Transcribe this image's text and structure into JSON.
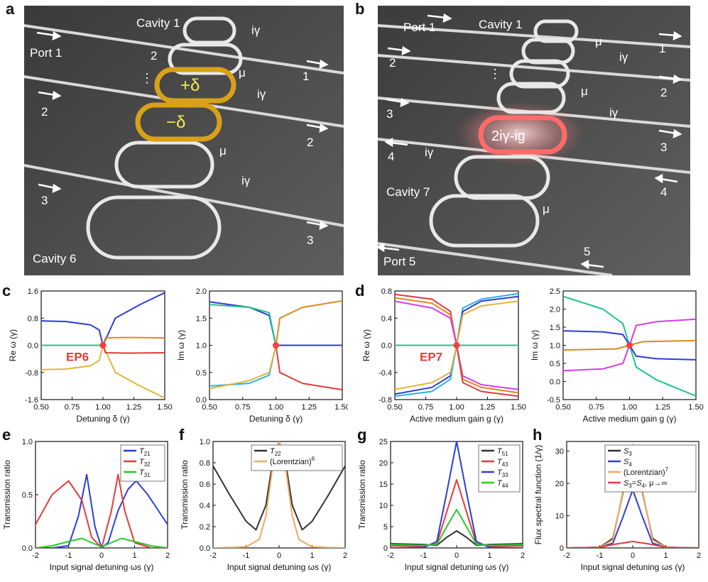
{
  "panel_labels": [
    "a",
    "b",
    "c",
    "d",
    "e",
    "f",
    "g",
    "h"
  ],
  "panel_a": {
    "cavity_top": "Cavity 1",
    "cavity_bottom": "Cavity 6",
    "ports_in": [
      "Port 1",
      "2",
      "3"
    ],
    "ports_out": [
      "1",
      "2",
      "3"
    ],
    "ring_labels": [
      "2",
      "⋮"
    ],
    "coupling": [
      "iγ",
      "μ",
      "iγ",
      "μ",
      "iγ"
    ],
    "detune_plus": "+δ",
    "detune_minus": "−δ"
  },
  "panel_b": {
    "cavity_top": "Cavity 1",
    "cavity_bottom": "Cavity 7",
    "ports_in": [
      "Port 1",
      "2",
      "3",
      "4"
    ],
    "ports_out": [
      "1",
      "2",
      "3",
      "4"
    ],
    "bottom_port": "Port 5",
    "bottom_port_out": "5",
    "coupling": [
      "μ",
      "iγ",
      "μ",
      "iγ",
      "iγ",
      "μ"
    ],
    "gain_label": "2iγ-ig",
    "dots": "⋮"
  },
  "colors": {
    "blue": "#2b3fd6",
    "orange": "#e2861f",
    "green": "#1fc48c",
    "yellow": "#e3b43a",
    "red": "#e23b3b",
    "cyan": "#29b0e8",
    "magenta": "#d63ce6",
    "black": "#333333",
    "bright_green": "#2ac92a",
    "light_orange": "#f3a95c"
  },
  "chart_data": [
    {
      "id": "c-left",
      "type": "line",
      "xlabel": "Detuning δ (γ)",
      "ylabel": "Re ω (γ)",
      "xlim": [
        0.5,
        1.5
      ],
      "ylim": [
        -1.6,
        1.6
      ],
      "xticks": [
        "0.50",
        "0.75",
        "1.00",
        "1.25",
        "1.50"
      ],
      "yticks": [
        "-1.6",
        "-0.8",
        "0.0",
        "0.8",
        "1.6"
      ],
      "annotation": "EP6",
      "ep_point": [
        1.0,
        0.0
      ],
      "series": [
        {
          "color": "blue",
          "x": [
            0.5,
            0.7,
            0.9,
            0.97,
            1.0,
            1.1,
            1.3,
            1.5
          ],
          "y": [
            0.72,
            0.7,
            0.6,
            0.45,
            0.0,
            0.8,
            1.2,
            1.55
          ]
        },
        {
          "color": "green",
          "x": [
            0.5,
            1.0
          ],
          "y": [
            0.0,
            0.0
          ]
        },
        {
          "color": "yellow",
          "x": [
            0.5,
            0.7,
            0.9,
            0.97,
            1.0,
            1.1,
            1.3,
            1.5
          ],
          "y": [
            -0.72,
            -0.7,
            -0.6,
            -0.45,
            0.0,
            -0.8,
            -1.2,
            -1.55
          ]
        },
        {
          "color": "orange",
          "x": [
            1.0,
            1.02,
            1.2,
            1.5
          ],
          "y": [
            0.0,
            0.22,
            0.23,
            0.22
          ]
        },
        {
          "color": "red",
          "x": [
            1.0,
            1.02,
            1.2,
            1.5
          ],
          "y": [
            0.0,
            -0.22,
            -0.23,
            -0.22
          ]
        }
      ]
    },
    {
      "id": "c-right",
      "type": "line",
      "xlabel": "Detuning δ (γ)",
      "ylabel": "Im ω (γ)",
      "xlim": [
        0.5,
        1.5
      ],
      "ylim": [
        0.0,
        2.0
      ],
      "xticks": [
        "0.50",
        "0.75",
        "1.00",
        "1.25",
        "1.50"
      ],
      "yticks": [
        "0.0",
        "0.5",
        "1.0",
        "1.5",
        "2.0"
      ],
      "ep_point": [
        1.0,
        1.0
      ],
      "series": [
        {
          "color": "blue",
          "x": [
            0.5,
            0.8,
            0.95,
            1.0,
            1.5
          ],
          "y": [
            1.8,
            1.7,
            1.55,
            1.0,
            1.0
          ]
        },
        {
          "color": "green",
          "x": [
            0.5,
            0.8,
            0.95,
            1.0
          ],
          "y": [
            1.75,
            1.7,
            1.6,
            1.0
          ]
        },
        {
          "color": "cyan",
          "x": [
            0.5,
            0.8,
            0.95,
            1.0
          ],
          "y": [
            0.25,
            0.3,
            0.45,
            1.0
          ]
        },
        {
          "color": "yellow",
          "x": [
            0.5,
            0.8,
            0.95,
            1.0
          ],
          "y": [
            0.2,
            0.35,
            0.5,
            1.0
          ]
        },
        {
          "color": "orange",
          "x": [
            1.0,
            1.03,
            1.2,
            1.5
          ],
          "y": [
            1.0,
            1.5,
            1.7,
            1.82
          ]
        },
        {
          "color": "red",
          "x": [
            1.0,
            1.03,
            1.2,
            1.5
          ],
          "y": [
            1.0,
            0.5,
            0.3,
            0.18
          ]
        }
      ]
    },
    {
      "id": "d-left",
      "type": "line",
      "xlabel": "Active medium gain g (γ)",
      "ylabel": "Re ω (γ)",
      "xlim": [
        0.5,
        1.5
      ],
      "ylim": [
        -0.8,
        0.8
      ],
      "xticks": [
        "0.50",
        "0.75",
        "1.00",
        "1.25",
        "1.50"
      ],
      "yticks": [
        "-0.8",
        "-0.4",
        "0.0",
        "0.4",
        "0.8"
      ],
      "annotation": "EP7",
      "ep_point": [
        1.0,
        0.0
      ],
      "series": [
        {
          "color": "green",
          "x": [
            0.5,
            1.5
          ],
          "y": [
            0.0,
            0.0
          ]
        },
        {
          "color": "red",
          "x": [
            0.5,
            0.8,
            0.95,
            1.0
          ],
          "y": [
            0.75,
            0.68,
            0.5,
            0.0
          ]
        },
        {
          "color": "orange",
          "x": [
            0.5,
            0.8,
            0.95,
            1.0
          ],
          "y": [
            0.7,
            0.62,
            0.45,
            0.0
          ]
        },
        {
          "color": "magenta",
          "x": [
            0.5,
            0.8,
            0.95,
            1.0
          ],
          "y": [
            0.65,
            0.55,
            0.4,
            0.0
          ]
        },
        {
          "color": "blue",
          "x": [
            0.5,
            0.8,
            0.95,
            1.0
          ],
          "y": [
            -0.72,
            -0.62,
            -0.45,
            0.0
          ]
        },
        {
          "color": "cyan",
          "x": [
            0.5,
            0.8,
            0.95,
            1.0
          ],
          "y": [
            -0.75,
            -0.68,
            -0.5,
            0.0
          ]
        },
        {
          "color": "yellow",
          "x": [
            0.5,
            0.8,
            0.95,
            1.0
          ],
          "y": [
            -0.65,
            -0.55,
            -0.4,
            0.0
          ]
        },
        {
          "color": "cyan",
          "x": [
            1.0,
            1.05,
            1.2,
            1.5
          ],
          "y": [
            0.0,
            0.55,
            0.68,
            0.76
          ]
        },
        {
          "color": "blue",
          "x": [
            1.0,
            1.05,
            1.2,
            1.5
          ],
          "y": [
            0.0,
            0.5,
            0.65,
            0.72
          ]
        },
        {
          "color": "yellow",
          "x": [
            1.0,
            1.05,
            1.2,
            1.5
          ],
          "y": [
            0.0,
            0.45,
            0.58,
            0.65
          ]
        },
        {
          "color": "magenta",
          "x": [
            1.0,
            1.05,
            1.2,
            1.5
          ],
          "y": [
            0.0,
            -0.45,
            -0.58,
            -0.65
          ]
        },
        {
          "color": "orange",
          "x": [
            1.0,
            1.05,
            1.2,
            1.5
          ],
          "y": [
            0.0,
            -0.5,
            -0.62,
            -0.7
          ]
        },
        {
          "color": "red",
          "x": [
            1.0,
            1.05,
            1.2,
            1.5
          ],
          "y": [
            0.0,
            -0.55,
            -0.68,
            -0.75
          ]
        }
      ]
    },
    {
      "id": "d-right",
      "type": "line",
      "xlabel": "Active medium gain g (γ)",
      "ylabel": "Im ω (γ)",
      "xlim": [
        0.5,
        1.5
      ],
      "ylim": [
        -0.5,
        2.5
      ],
      "xticks": [
        "0.50",
        "0.75",
        "1.00",
        "1.25",
        "1.50"
      ],
      "yticks": [
        "-0.5",
        "0.0",
        "0.5",
        "1.0",
        "1.5",
        "2.0",
        "2.5"
      ],
      "ep_point": [
        1.0,
        1.0
      ],
      "series": [
        {
          "color": "green",
          "x": [
            0.5,
            0.8,
            0.95,
            1.0,
            1.05,
            1.2,
            1.5
          ],
          "y": [
            2.35,
            2.0,
            1.6,
            1.0,
            0.4,
            0.05,
            -0.4
          ]
        },
        {
          "color": "blue",
          "x": [
            0.5,
            0.8,
            0.95,
            1.0,
            1.05,
            1.2,
            1.5
          ],
          "y": [
            1.4,
            1.37,
            1.3,
            1.0,
            0.7,
            0.63,
            0.6
          ]
        },
        {
          "color": "orange",
          "x": [
            0.5,
            0.9,
            1.0,
            1.1,
            1.5
          ],
          "y": [
            0.87,
            0.9,
            1.0,
            1.1,
            1.13
          ]
        },
        {
          "color": "magenta",
          "x": [
            0.5,
            0.8,
            0.95,
            1.0,
            1.05,
            1.2,
            1.5
          ],
          "y": [
            0.3,
            0.35,
            0.5,
            1.0,
            1.55,
            1.65,
            1.72
          ]
        }
      ]
    },
    {
      "id": "e",
      "type": "line",
      "xlabel": "Input signal detuning ωs (γ)",
      "ylabel": "Transmission ratio",
      "xlim": [
        -2,
        2
      ],
      "ylim": [
        0,
        1.0
      ],
      "xticks": [
        "-2",
        "-1",
        "0",
        "1",
        "2"
      ],
      "yticks": [
        "0.0",
        "0.5",
        "1.0"
      ],
      "series": [
        {
          "name": "T21",
          "color": "blue",
          "x": [
            -2,
            -1.5,
            -1,
            -0.7,
            -0.45,
            -0.2,
            0,
            0.2,
            0.5,
            0.8,
            1.05,
            1.4,
            2
          ],
          "y": [
            0.0,
            0.0,
            0.02,
            0.3,
            0.69,
            0.2,
            0.0,
            0.05,
            0.35,
            0.55,
            0.63,
            0.5,
            0.22
          ]
        },
        {
          "name": "T32",
          "color": "red",
          "x": [
            -2,
            -1.5,
            -1,
            -0.6,
            -0.3,
            0,
            0.3,
            0.5,
            0.7,
            1,
            1.5,
            2
          ],
          "y": [
            0.22,
            0.5,
            0.63,
            0.45,
            0.1,
            0.0,
            0.35,
            0.69,
            0.35,
            0.05,
            0.0,
            0.0
          ]
        },
        {
          "name": "T31",
          "color": "bright_green",
          "x": [
            -2,
            -1.5,
            -1,
            -0.6,
            -0.3,
            0,
            0.3,
            0.6,
            1,
            1.5,
            2
          ],
          "y": [
            0.0,
            0.02,
            0.06,
            0.09,
            0.05,
            0.01,
            0.05,
            0.09,
            0.06,
            0.02,
            0.0
          ]
        }
      ]
    },
    {
      "id": "f",
      "type": "line",
      "xlabel": "Input signal detuning ωs (γ)",
      "ylabel": "Transmission ratio",
      "xlim": [
        -2,
        2
      ],
      "ylim": [
        0,
        1.0
      ],
      "xticks": [
        "-2",
        "-1",
        "0",
        "1",
        "2"
      ],
      "yticks": [
        "0.0",
        "0.2",
        "0.4",
        "0.6",
        "0.8",
        "1.0"
      ],
      "series": [
        {
          "name": "T22",
          "color": "black",
          "x": [
            -2,
            -1.5,
            -1,
            -0.7,
            -0.4,
            -0.2,
            0,
            0.2,
            0.4,
            0.7,
            1,
            1.5,
            2
          ],
          "y": [
            0.77,
            0.5,
            0.25,
            0.17,
            0.4,
            0.8,
            1.0,
            0.8,
            0.4,
            0.17,
            0.25,
            0.5,
            0.77
          ]
        },
        {
          "name": "(Lorentzian)6",
          "color": "light_orange",
          "x": [
            -2,
            -1,
            -0.6,
            -0.4,
            -0.2,
            0,
            0.2,
            0.4,
            0.6,
            1,
            2
          ],
          "y": [
            0.0,
            0.01,
            0.08,
            0.3,
            0.75,
            1.0,
            0.75,
            0.3,
            0.08,
            0.01,
            0.0
          ]
        }
      ]
    },
    {
      "id": "g",
      "type": "line",
      "xlabel": "Input signal detuning ωs (γ)",
      "ylabel": "Transmission ratio",
      "xlim": [
        -2,
        2
      ],
      "ylim": [
        0,
        25
      ],
      "xticks": [
        "-2",
        "-1",
        "0",
        "1",
        "2"
      ],
      "yticks": [
        "0",
        "5",
        "10",
        "15",
        "20",
        "25"
      ],
      "series": [
        {
          "name": "T51",
          "color": "black",
          "x": [
            -2,
            -1,
            -0.6,
            -0.3,
            0,
            0.3,
            0.6,
            1,
            2
          ],
          "y": [
            1.0,
            0.8,
            0.6,
            2.5,
            4.0,
            2.5,
            0.6,
            0.8,
            1.0
          ]
        },
        {
          "name": "T43",
          "color": "red",
          "x": [
            -2,
            -1,
            -0.6,
            -0.3,
            0,
            0.3,
            0.6,
            1,
            2
          ],
          "y": [
            0.5,
            0.4,
            1.0,
            8.5,
            16.0,
            8.5,
            1.0,
            0.4,
            0.5
          ]
        },
        {
          "name": "T33",
          "color": "blue",
          "x": [
            -2,
            -1,
            -0.6,
            -0.3,
            0,
            0.3,
            0.6,
            1,
            2
          ],
          "y": [
            0.0,
            0.1,
            1.5,
            13.0,
            25.0,
            13.0,
            1.5,
            0.1,
            0.0
          ]
        },
        {
          "name": "T44",
          "color": "bright_green",
          "x": [
            -2,
            -1,
            -0.6,
            -0.3,
            0,
            0.3,
            0.6,
            1,
            2
          ],
          "y": [
            0.8,
            0.6,
            0.8,
            5.0,
            9.0,
            5.0,
            0.8,
            0.6,
            0.8
          ]
        }
      ]
    },
    {
      "id": "h",
      "type": "line",
      "xlabel": "Input signal detuning ωs (γ)",
      "ylabel": "Flux spectral function (1/γ)",
      "xlim": [
        -2,
        2
      ],
      "ylim": [
        0,
        33
      ],
      "xticks": [
        "-2",
        "-1",
        "0",
        "1",
        "2"
      ],
      "yticks": [
        "0",
        "10",
        "20",
        "30"
      ],
      "series": [
        {
          "name": "S3",
          "color": "black",
          "x": [
            -2,
            -1,
            -0.6,
            -0.3,
            0,
            0.3,
            0.6,
            1,
            2
          ],
          "y": [
            0.0,
            0.2,
            3.0,
            17.0,
            32.0,
            17.0,
            3.0,
            0.2,
            0.0
          ]
        },
        {
          "name": "S4",
          "color": "blue",
          "x": [
            -2,
            -1,
            -0.6,
            -0.3,
            0,
            0.3,
            0.6,
            1,
            2
          ],
          "y": [
            0.0,
            0.1,
            1.5,
            9.5,
            18.0,
            9.5,
            1.5,
            0.1,
            0.0
          ]
        },
        {
          "name": "(Lorentzian)7",
          "color": "light_orange",
          "x": [
            -2,
            -1,
            -0.6,
            -0.3,
            0,
            0.3,
            0.6,
            1,
            2
          ],
          "y": [
            0.0,
            0.1,
            2.5,
            17.5,
            32.0,
            17.5,
            2.5,
            0.1,
            0.0
          ]
        },
        {
          "name": "S3=S4, μ→∞",
          "color": "red",
          "x": [
            -2,
            -1,
            -0.5,
            0,
            0.5,
            1,
            2
          ],
          "y": [
            0.0,
            0.2,
            1.2,
            2.0,
            1.2,
            0.2,
            0.0
          ]
        }
      ]
    }
  ]
}
